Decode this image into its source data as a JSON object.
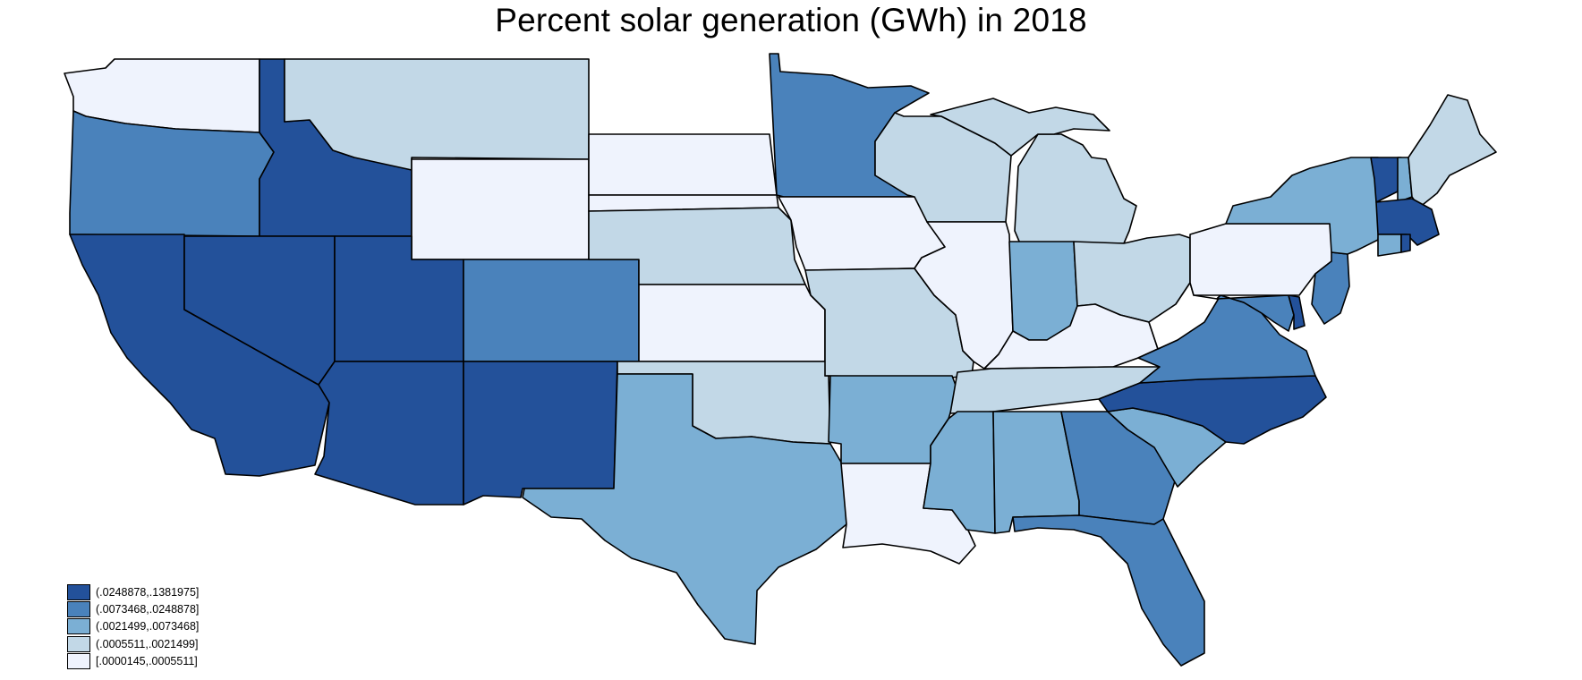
{
  "title": "Percent solar generation (GWh) in 2018",
  "colors": {
    "c5": "#23519a",
    "c4": "#4a82bb",
    "c3": "#7bafd4",
    "c2": "#c2d8e7",
    "c1": "#eff3fd"
  },
  "legend": [
    {
      "label": "(.0248878,.1381975]",
      "class": "c5"
    },
    {
      "label": "(.0073468,.0248878]",
      "class": "c4"
    },
    {
      "label": "(.0021499,.0073468]",
      "class": "c3"
    },
    {
      "label": "(.0005511,.0021499]",
      "class": "c2"
    },
    {
      "label": "[.0000145,.0005511]",
      "class": "c1"
    }
  ],
  "states": {
    "WA": "c1",
    "OR": "c4",
    "CA": "c5",
    "ID": "c5",
    "NV": "c5",
    "MT": "c2",
    "WY": "c1",
    "UT": "c5",
    "AZ": "c5",
    "CO": "c4",
    "NM": "c5",
    "ND": "c1",
    "SD": "c1",
    "NE": "c2",
    "KS": "c1",
    "OK": "c2",
    "TX": "c3",
    "MN": "c4",
    "IA": "c1",
    "MO": "c2",
    "AR": "c3",
    "LA": "c1",
    "WI": "c2",
    "IL": "c1",
    "MI": "c2",
    "IN": "c3",
    "OH": "c2",
    "KY": "c1",
    "TN": "c2",
    "MS": "c3",
    "AL": "c3",
    "GA": "c4",
    "FL": "c4",
    "SC": "c3",
    "NC": "c5",
    "VA": "c4",
    "WV": "c0",
    "PA": "c1",
    "NY": "c3",
    "ME": "c2",
    "VT": "c5",
    "NH": "c3",
    "MA": "c5",
    "CT": "c3",
    "RI": "c5",
    "NJ": "c4",
    "DE": "c5",
    "MD": "c4"
  }
}
